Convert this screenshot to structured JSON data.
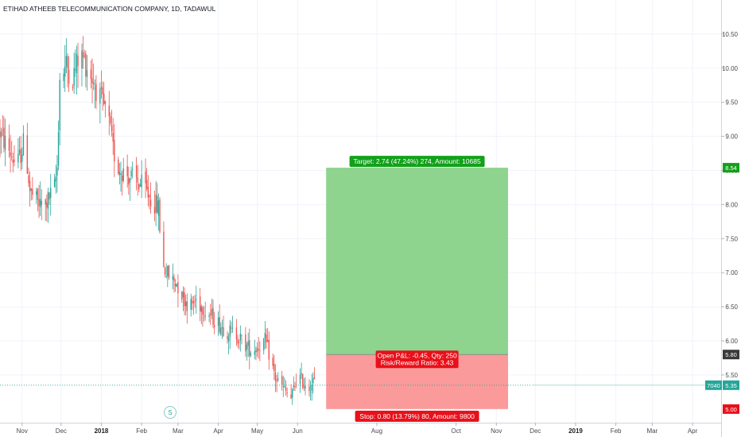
{
  "chart_data": {
    "type": "candlestick",
    "title": "ETIHAD ATHEEB TELECOMMUNICATION COMPANY, 1D, TADAWUL",
    "x_ticks": [
      {
        "label": "Nov",
        "date": "2017-11-01"
      },
      {
        "label": "Dec",
        "date": "2017-12-01"
      },
      {
        "label": "2018",
        "date": "2018-01-01",
        "bold": true
      },
      {
        "label": "Feb",
        "date": "2018-02-01"
      },
      {
        "label": "Mar",
        "date": "2018-03-01"
      },
      {
        "label": "Apr",
        "date": "2018-04-01"
      },
      {
        "label": "May",
        "date": "2018-05-01"
      },
      {
        "label": "Jun",
        "date": "2018-06-01"
      },
      {
        "label": "Aug",
        "date": "2018-08-01"
      },
      {
        "label": "Oct",
        "date": "2018-10-01"
      },
      {
        "label": "Nov",
        "date": "2018-11-01"
      },
      {
        "label": "Dec",
        "date": "2018-12-01"
      },
      {
        "label": "2019",
        "date": "2019-01-01",
        "bold": true
      },
      {
        "label": "Feb",
        "date": "2019-02-01"
      },
      {
        "label": "Mar",
        "date": "2019-03-01"
      },
      {
        "label": "Apr",
        "date": "2019-04-01"
      }
    ],
    "y_ticks": [
      "5.50",
      "6.00",
      "6.50",
      "7.00",
      "7.50",
      "8.00",
      "8.50",
      "9.00",
      "9.50",
      "10.00",
      "10.50"
    ],
    "ylim": [
      4.8,
      11.0
    ],
    "price_path": [
      [
        "2017-10-15",
        9.05
      ],
      [
        "2017-10-22",
        8.8
      ],
      [
        "2017-10-28",
        8.55
      ],
      [
        "2017-11-03",
        8.95
      ],
      [
        "2017-11-07",
        8.2
      ],
      [
        "2017-11-12",
        8.05
      ],
      [
        "2017-11-17",
        7.95
      ],
      [
        "2017-11-22",
        8.1
      ],
      [
        "2017-11-26",
        8.25
      ],
      [
        "2017-11-28",
        8.55
      ],
      [
        "2017-11-30",
        9.85
      ],
      [
        "2017-12-05",
        10.05
      ],
      [
        "2017-12-10",
        9.85
      ],
      [
        "2017-12-15",
        10.2
      ],
      [
        "2017-12-18",
        10.15
      ],
      [
        "2017-12-24",
        9.9
      ],
      [
        "2017-12-31",
        9.55
      ],
      [
        "2018-01-06",
        9.3
      ],
      [
        "2018-01-10",
        8.8
      ],
      [
        "2018-01-14",
        8.55
      ],
      [
        "2018-01-20",
        8.45
      ],
      [
        "2018-01-27",
        8.35
      ],
      [
        "2018-02-03",
        8.25
      ],
      [
        "2018-02-09",
        8.05
      ],
      [
        "2018-02-14",
        7.95
      ],
      [
        "2018-02-17",
        7.1
      ],
      [
        "2018-02-22",
        6.95
      ],
      [
        "2018-02-28",
        6.85
      ],
      [
        "2018-03-05",
        6.65
      ],
      [
        "2018-03-10",
        6.5
      ],
      [
        "2018-03-15",
        6.6
      ],
      [
        "2018-03-22",
        6.45
      ],
      [
        "2018-03-30",
        6.3
      ],
      [
        "2018-04-07",
        6.15
      ],
      [
        "2018-04-15",
        6.1
      ],
      [
        "2018-04-21",
        5.95
      ],
      [
        "2018-04-27",
        5.85
      ],
      [
        "2018-05-03",
        5.95
      ],
      [
        "2018-05-07",
        6.0
      ],
      [
        "2018-05-11",
        5.75
      ],
      [
        "2018-05-15",
        5.45
      ],
      [
        "2018-05-21",
        5.3
      ],
      [
        "2018-05-27",
        5.15
      ],
      [
        "2018-06-01",
        5.5
      ],
      [
        "2018-06-05",
        5.4
      ],
      [
        "2018-06-09",
        5.3
      ],
      [
        "2018-06-13",
        5.4
      ],
      [
        "2018-06-16",
        5.35
      ]
    ],
    "last_price": "5.35",
    "last_price_tag": "7040",
    "current_line_date": "2018-06-16",
    "position": {
      "side": "long",
      "start_date": "2018-06-23",
      "end_date": "2018-11-10",
      "entry": 5.8,
      "target_price": 8.54,
      "stop_price": 5.0,
      "target_label": "Target: 2.74 (47.24%) 274, Amount: 10685",
      "stop_label": "Stop: 0.80 (13.79%) 80, Amount: 9800",
      "pnl_label": "Open P&L: -0.45, Qty: 250",
      "ratio_label": "Risk/Reward Ratio: 3.43",
      "target_tag": "8.54",
      "entry_tag": "5.80",
      "stop_tag": "5.00"
    },
    "colors": {
      "up": "#26a69a",
      "down": "#ef5350",
      "profit_zone": "#8ed38e",
      "loss_zone": "#fa9a9a",
      "target_label_bg": "#12a11a",
      "stop_label_bg": "#e8101a",
      "price_line": "#26a69a"
    }
  },
  "marker": {
    "symbol": "S"
  }
}
